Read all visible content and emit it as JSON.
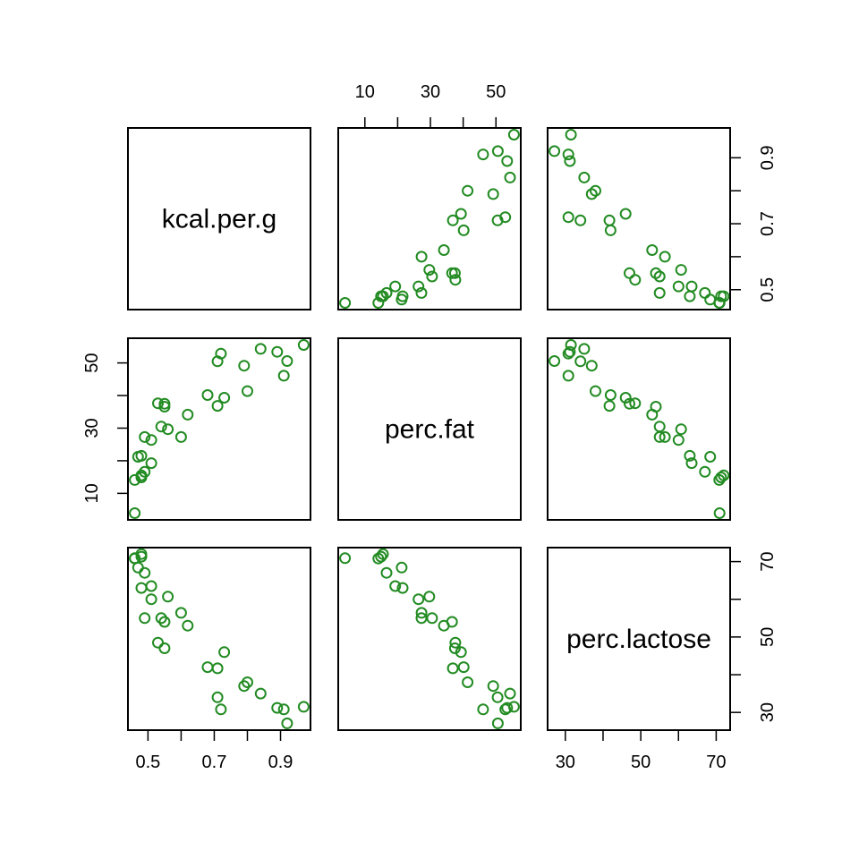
{
  "chart_data": {
    "type": "scatter",
    "title": "",
    "grid": false,
    "point_color": "#228B22",
    "point_shape": "open-circle",
    "variables": [
      {
        "name": "kcal.per.g",
        "range": [
          0.46,
          0.97
        ],
        "ticks": [
          0.5,
          0.7,
          0.9
        ],
        "tick_labels": [
          "0.5",
          "0.7",
          "0.9"
        ]
      },
      {
        "name": "perc.fat",
        "range": [
          3.93,
          55.51
        ],
        "ticks": [
          10,
          30,
          50
        ],
        "tick_labels": [
          "10",
          "30",
          "50"
        ]
      },
      {
        "name": "perc.lactose",
        "range": [
          27.09,
          71.91
        ],
        "ticks": [
          30,
          50,
          70
        ],
        "tick_labels": [
          "30",
          "50",
          "70"
        ]
      }
    ],
    "axes": [
      {
        "side": "bottom",
        "col": 0,
        "var": 0
      },
      {
        "side": "bottom",
        "col": 2,
        "var": 2
      },
      {
        "side": "top",
        "col": 1,
        "var": 1
      },
      {
        "side": "left",
        "row": 1,
        "var": 1
      },
      {
        "side": "right",
        "row": 0,
        "var": 0
      },
      {
        "side": "right",
        "row": 2,
        "var": 2
      }
    ],
    "records": [
      [
        0.49,
        16.6,
        67.0
      ],
      [
        0.51,
        19.27,
        63.5
      ],
      [
        0.46,
        14.11,
        70.8
      ],
      [
        0.48,
        14.91,
        71.3
      ],
      [
        0.6,
        27.28,
        56.4
      ],
      [
        0.47,
        21.22,
        68.4
      ],
      [
        0.56,
        29.66,
        60.7
      ],
      [
        0.89,
        53.41,
        31.2
      ],
      [
        0.91,
        46.08,
        30.8
      ],
      [
        0.92,
        50.58,
        27.1
      ],
      [
        0.8,
        41.35,
        38.0
      ],
      [
        0.46,
        3.93,
        70.9
      ],
      [
        0.71,
        36.84,
        41.7
      ],
      [
        0.71,
        50.49,
        34.0
      ],
      [
        0.73,
        39.32,
        46.0
      ],
      [
        0.68,
        40.15,
        42.0
      ],
      [
        0.72,
        52.85,
        30.8
      ],
      [
        0.97,
        55.51,
        31.5
      ],
      [
        0.79,
        49.15,
        37.0
      ],
      [
        0.84,
        54.31,
        35.0
      ],
      [
        0.48,
        15.51,
        72.0
      ],
      [
        0.62,
        34.13,
        53.0
      ],
      [
        0.51,
        26.36,
        60.0
      ],
      [
        0.54,
        30.5,
        55.0
      ],
      [
        0.49,
        27.27,
        55.0
      ],
      [
        0.53,
        37.62,
        48.5
      ],
      [
        0.48,
        21.52,
        63.0
      ],
      [
        0.55,
        36.59,
        54.0
      ],
      [
        0.55,
        37.48,
        47.0
      ]
    ]
  }
}
